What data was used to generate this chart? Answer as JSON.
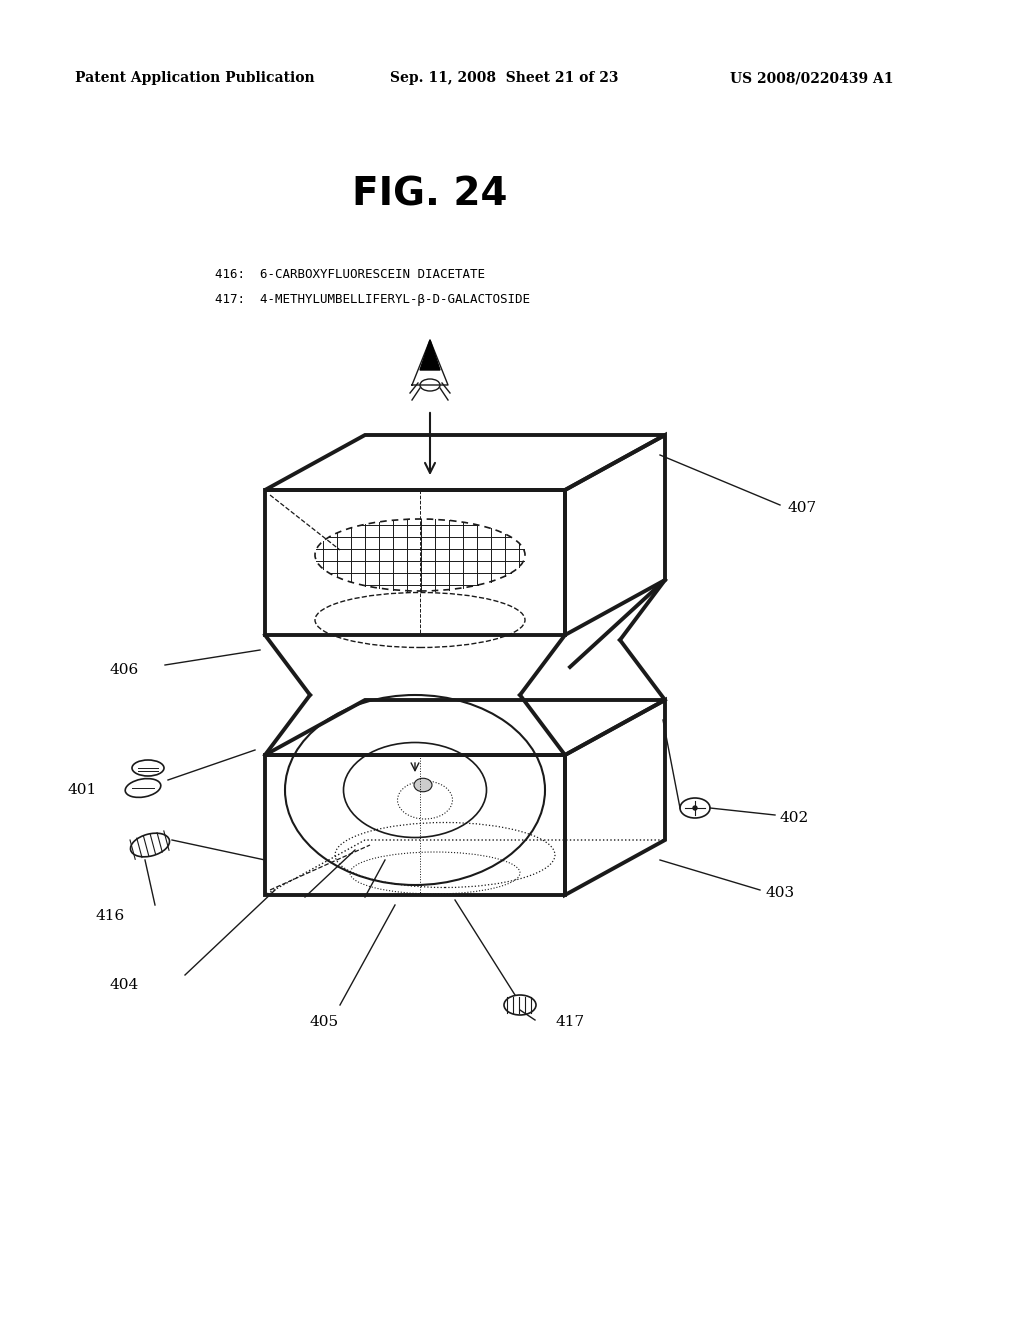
{
  "title": "FIG. 24",
  "header_left": "Patent Application Publication",
  "header_mid": "Sep. 11, 2008  Sheet 21 of 23",
  "header_right": "US 2008/0220439 A1",
  "legend_416": "416:  6-CARBOXYFLUORESCEIN DIACETATE",
  "legend_417": "417:  4-METHYLUMBELLIFERYL-β-D-GALACTOSIDE",
  "label_407": "407",
  "label_406": "406",
  "label_401": "401",
  "label_402": "402",
  "label_403": "403",
  "label_404": "404",
  "label_405": "405",
  "label_416": "416",
  "label_417": "417",
  "bg_color": "#ffffff",
  "line_color": "#1a1a1a"
}
